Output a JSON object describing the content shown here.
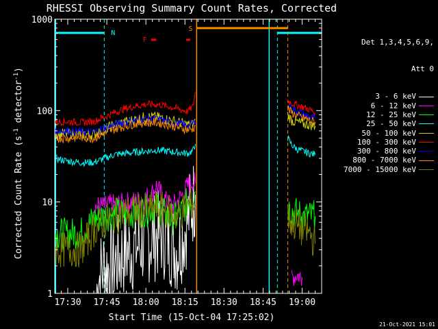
{
  "chart_data": {
    "type": "line",
    "title": "RHESSI Observing Summary Count Rates, Corrected",
    "xlabel": "Start Time (15-Oct-04 17:25:02)",
    "ylabel": "Corrected Count Rate (s⁻¹ detector⁻¹)",
    "ylabel_parts": [
      "Corrected Count Rate (s",
      "-1",
      " detector",
      "-1",
      ")"
    ],
    "yscale": "log",
    "ylim": [
      1,
      1000
    ],
    "xlim_minutes": [
      25.0,
      127.5
    ],
    "yticks": [
      {
        "v": 1,
        "label": "1"
      },
      {
        "v": 10,
        "label": "10"
      },
      {
        "v": 100,
        "label": "100"
      },
      {
        "v": 1000,
        "label": "1000"
      }
    ],
    "xticks": [
      {
        "m": 30,
        "label": "17:30"
      },
      {
        "m": 45,
        "label": "17:45"
      },
      {
        "m": 60,
        "label": "18:00"
      },
      {
        "m": 75,
        "label": "18:15"
      },
      {
        "m": 90,
        "label": "18:30"
      },
      {
        "m": 105,
        "label": "18:45"
      },
      {
        "m": 120,
        "label": "19:00"
      }
    ],
    "legend_header": [
      "Det 1,3,4,5,6,9,",
      "Att 0"
    ],
    "timestamp": "21-Oct-2021 15:01",
    "annotations": {
      "night_label": "N",
      "saa_label": "S",
      "flare_label": "F",
      "night_bars": [
        [
          25.0,
          44.0
        ],
        [
          110.5,
          127.5
        ]
      ],
      "night_boundaries": [
        44.0,
        110.5,
        127.5
      ],
      "saa_bar": [
        79.5,
        114.5
      ],
      "saa_boundaries": [
        79.5,
        114.5
      ],
      "flare_marks": [
        [
          62.0,
          64.0
        ],
        [
          75.5,
          77.0
        ]
      ]
    },
    "series": [
      {
        "label": "3 - 6 keV",
        "color": "#ffffff",
        "seg1": [
          [
            41,
            1
          ],
          [
            42,
            1.5
          ],
          [
            44,
            2
          ],
          [
            46,
            1.8
          ],
          [
            48,
            2.2
          ],
          [
            50,
            2.5
          ],
          [
            52,
            2.8
          ],
          [
            54,
            3
          ],
          [
            56,
            3.2
          ],
          [
            58,
            3.5
          ],
          [
            60,
            3.8
          ],
          [
            62,
            4
          ],
          [
            64,
            4.2
          ],
          [
            66,
            4.5
          ],
          [
            68,
            4
          ],
          [
            70,
            3.5
          ],
          [
            72,
            3
          ],
          [
            73,
            3.5
          ],
          [
            75,
            5
          ],
          [
            77,
            8
          ],
          [
            79,
            12
          ]
        ],
        "seg2": []
      },
      {
        "label": "6 - 12 keV",
        "color": "#ff00ff",
        "seg1": [
          [
            40,
            9
          ],
          [
            44,
            9
          ],
          [
            46,
            9.3
          ],
          [
            50,
            9.5
          ],
          [
            54,
            10
          ],
          [
            58,
            10.5
          ],
          [
            62,
            12
          ],
          [
            64,
            15
          ],
          [
            66,
            12
          ],
          [
            68,
            10
          ],
          [
            70,
            9
          ],
          [
            72,
            10
          ],
          [
            74,
            12
          ],
          [
            76,
            15
          ],
          [
            78,
            17
          ],
          [
            79,
            16
          ]
        ],
        "seg2": [
          [
            116,
            1.5
          ],
          [
            118,
            1.6
          ],
          [
            120,
            1.5
          ]
        ]
      },
      {
        "label": "12 - 25 keV",
        "color": "#00ff00",
        "seg1": [
          [
            25,
            4.5
          ],
          [
            30,
            4.5
          ],
          [
            35,
            4.6
          ],
          [
            40,
            6.5
          ],
          [
            44,
            7
          ],
          [
            48,
            7.5
          ],
          [
            52,
            7.5
          ],
          [
            56,
            7.8
          ],
          [
            60,
            8
          ],
          [
            62,
            8.5
          ],
          [
            64,
            9
          ],
          [
            66,
            8
          ],
          [
            68,
            7
          ],
          [
            70,
            6.5
          ],
          [
            72,
            7
          ],
          [
            74,
            8
          ],
          [
            76,
            10
          ],
          [
            78,
            12
          ],
          [
            79,
            13
          ]
        ],
        "seg2": [
          [
            114.5,
            9
          ],
          [
            116,
            8
          ],
          [
            118,
            7.5
          ],
          [
            120,
            7
          ],
          [
            123,
            7
          ],
          [
            125,
            7
          ]
        ]
      },
      {
        "label": "25 - 50 keV",
        "color": "#00ffff",
        "seg1": [
          [
            25,
            30
          ],
          [
            30,
            28
          ],
          [
            35,
            27
          ],
          [
            40,
            27
          ],
          [
            44,
            30
          ],
          [
            48,
            33
          ],
          [
            52,
            34
          ],
          [
            56,
            35
          ],
          [
            60,
            36
          ],
          [
            64,
            37
          ],
          [
            68,
            36
          ],
          [
            72,
            35
          ],
          [
            76,
            34
          ],
          [
            78,
            36
          ],
          [
            79,
            43
          ]
        ],
        "seg2": [
          [
            114.5,
            50
          ],
          [
            116,
            42
          ],
          [
            118,
            38
          ],
          [
            120,
            36
          ],
          [
            123,
            34
          ],
          [
            125,
            33
          ]
        ]
      },
      {
        "label": "50 - 100 keV",
        "color": "#d0d000",
        "seg1": [
          [
            25,
            55
          ],
          [
            30,
            56
          ],
          [
            35,
            55
          ],
          [
            40,
            55
          ],
          [
            44,
            62
          ],
          [
            48,
            70
          ],
          [
            52,
            75
          ],
          [
            56,
            80
          ],
          [
            60,
            85
          ],
          [
            64,
            85
          ],
          [
            68,
            80
          ],
          [
            72,
            75
          ],
          [
            76,
            70
          ],
          [
            78,
            70
          ],
          [
            79,
            80
          ]
        ],
        "seg2": [
          [
            114.5,
            90
          ],
          [
            116,
            78
          ],
          [
            118,
            75
          ],
          [
            120,
            72
          ],
          [
            123,
            70
          ],
          [
            125,
            68
          ]
        ]
      },
      {
        "label": "100 - 300 keV",
        "color": "#ff0000",
        "seg1": [
          [
            25,
            75
          ],
          [
            30,
            76
          ],
          [
            35,
            74
          ],
          [
            40,
            76
          ],
          [
            44,
            85
          ],
          [
            48,
            95
          ],
          [
            52,
            105
          ],
          [
            56,
            112
          ],
          [
            60,
            117
          ],
          [
            64,
            117
          ],
          [
            68,
            112
          ],
          [
            72,
            105
          ],
          [
            76,
            98
          ],
          [
            78,
            110
          ],
          [
            79,
            160
          ]
        ],
        "seg2": [
          [
            114.5,
            130
          ],
          [
            116,
            120
          ],
          [
            118,
            115
          ],
          [
            120,
            110
          ],
          [
            123,
            102
          ],
          [
            125,
            95
          ]
        ]
      },
      {
        "label": "300 - 800 keV",
        "color": "#0000ff",
        "seg1": [
          [
            25,
            60
          ],
          [
            30,
            60
          ],
          [
            35,
            59
          ],
          [
            40,
            58
          ],
          [
            44,
            64
          ],
          [
            48,
            70
          ],
          [
            52,
            75
          ],
          [
            56,
            78
          ],
          [
            60,
            80
          ],
          [
            64,
            80
          ],
          [
            68,
            76
          ],
          [
            72,
            72
          ],
          [
            76,
            68
          ],
          [
            78,
            72
          ],
          [
            79,
            75
          ]
        ],
        "seg2": [
          [
            114.5,
            115
          ],
          [
            116,
            105
          ],
          [
            118,
            98
          ],
          [
            120,
            92
          ],
          [
            123,
            85
          ],
          [
            125,
            80
          ]
        ]
      },
      {
        "label": "800 - 7000 keV",
        "color": "#ff8c00",
        "seg1": [
          [
            25,
            50
          ],
          [
            30,
            50
          ],
          [
            35,
            51
          ],
          [
            40,
            50
          ],
          [
            44,
            56
          ],
          [
            48,
            63
          ],
          [
            52,
            68
          ],
          [
            56,
            72
          ],
          [
            60,
            74
          ],
          [
            64,
            74
          ],
          [
            68,
            71
          ],
          [
            72,
            66
          ],
          [
            76,
            62
          ],
          [
            78,
            63
          ],
          [
            79,
            68
          ]
        ],
        "seg2": [
          [
            114.5,
            105
          ],
          [
            116,
            95
          ],
          [
            118,
            88
          ],
          [
            120,
            84
          ],
          [
            123,
            78
          ],
          [
            125,
            75
          ]
        ]
      },
      {
        "label": "7000 - 15000 keV",
        "color": "#808000",
        "seg1": [
          [
            25,
            3
          ],
          [
            30,
            3
          ],
          [
            35,
            3
          ],
          [
            40,
            5
          ],
          [
            44,
            6
          ],
          [
            48,
            7
          ],
          [
            52,
            7.5
          ],
          [
            56,
            8
          ],
          [
            60,
            8
          ],
          [
            64,
            8.5
          ],
          [
            68,
            8
          ],
          [
            72,
            7
          ],
          [
            74,
            8
          ],
          [
            76,
            9
          ],
          [
            78,
            10
          ],
          [
            79,
            9
          ]
        ],
        "seg2": [
          [
            114.5,
            7
          ],
          [
            116,
            6
          ],
          [
            118,
            5.5
          ],
          [
            120,
            5
          ],
          [
            123,
            4.5
          ],
          [
            125,
            3.5
          ]
        ]
      }
    ],
    "colors": {
      "background": "#000000",
      "axes": "#ffffff",
      "night": "#00ffff",
      "saa": "#ff8c00",
      "flare": "#ff0000"
    }
  }
}
